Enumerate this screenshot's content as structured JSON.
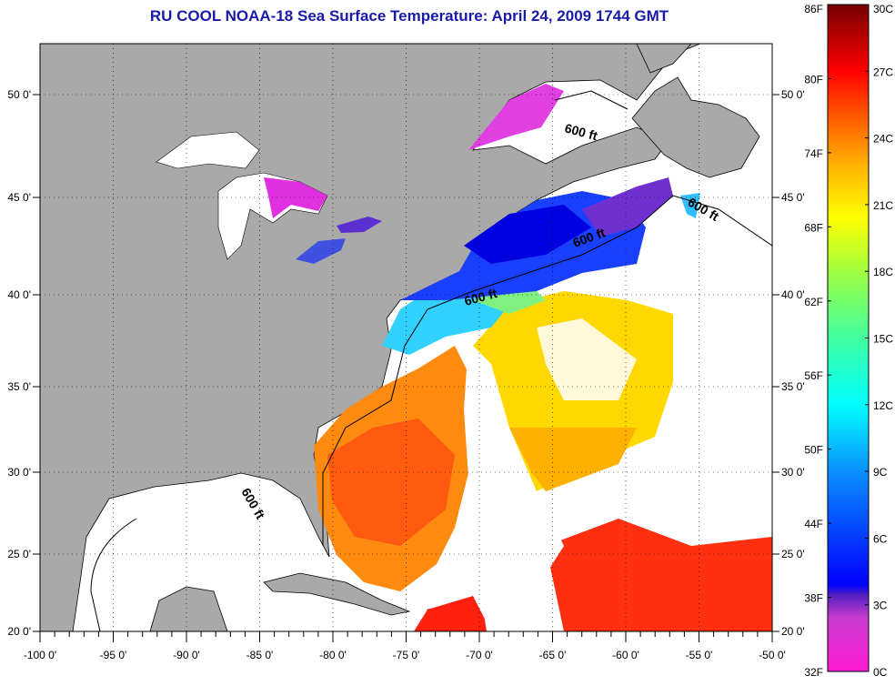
{
  "title": "RU COOL  NOAA-18  Sea Surface Temperature:  April 24, 2009 1744 GMT",
  "map": {
    "lon_ticks": [
      "-100 0'",
      "-95 0'",
      "-90 0'",
      "-85 0'",
      "-80 0'",
      "-75 0'",
      "-70 0'",
      "-65 0'",
      "-60 0'",
      "-55 0'",
      "-50 0'"
    ],
    "lat_ticks": [
      "20 0'",
      "25 0'",
      "30 0'",
      "35 0'",
      "40 0'",
      "45 0'",
      "50 0'"
    ],
    "contour_labels": [
      "600 ft",
      "600 ft",
      "600 ft",
      "600 ft",
      "600 ft"
    ]
  },
  "colorbar": {
    "fahrenheit": [
      "86F",
      "80F",
      "74F",
      "68F",
      "62F",
      "56F",
      "50F",
      "44F",
      "38F",
      "32F"
    ],
    "celsius": [
      "30C",
      "27C",
      "24C",
      "21C",
      "18C",
      "15C",
      "12C",
      "9C",
      "6C",
      "3C",
      "0C"
    ],
    "range_c": [
      0,
      30
    ]
  }
}
